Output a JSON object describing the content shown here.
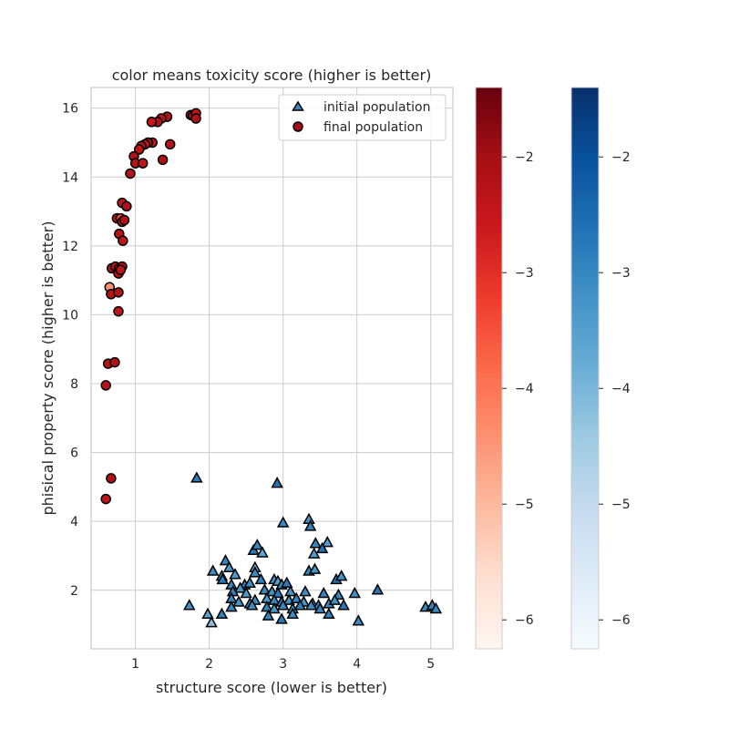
{
  "chart_data": {
    "type": "scatter",
    "title": "color means toxicity score (higher is better)",
    "xlabel": "structure score (lower is better)",
    "ylabel": "phisical property score (higher is better)",
    "xlim": [
      0.4,
      5.3
    ],
    "ylim": [
      0.3,
      16.6
    ],
    "xticks": [
      1,
      2,
      3,
      4,
      5
    ],
    "yticks": [
      2,
      4,
      6,
      8,
      10,
      12,
      14,
      16
    ],
    "grid": true,
    "legend_position": "top-right",
    "series": [
      {
        "name": "initial population",
        "marker": "triangle",
        "colormap": "Blues",
        "points": [
          [
            1.83,
            5.25,
            -2.8
          ],
          [
            2.92,
            5.1,
            -2.7
          ],
          [
            3.0,
            3.95,
            -3.0
          ],
          [
            3.35,
            4.05,
            -3.2
          ],
          [
            3.37,
            3.85,
            -2.9
          ],
          [
            3.6,
            3.38,
            -3.5
          ],
          [
            3.44,
            3.35,
            -3.0
          ],
          [
            3.53,
            3.2,
            -2.6
          ],
          [
            3.42,
            3.05,
            -3.4
          ],
          [
            2.6,
            3.15,
            -2.8
          ],
          [
            2.65,
            3.3,
            -3.0
          ],
          [
            2.72,
            3.08,
            -3.6
          ],
          [
            2.22,
            2.85,
            -2.9
          ],
          [
            2.27,
            2.65,
            -3.3
          ],
          [
            2.05,
            2.55,
            -3.1
          ],
          [
            2.17,
            2.4,
            -3.2
          ],
          [
            2.18,
            2.3,
            -2.8
          ],
          [
            2.35,
            2.45,
            -3.4
          ],
          [
            2.62,
            2.65,
            -3.7
          ],
          [
            2.62,
            2.5,
            -3.1
          ],
          [
            2.7,
            2.3,
            -2.9
          ],
          [
            2.88,
            2.3,
            -3.2
          ],
          [
            2.93,
            2.25,
            -3.5
          ],
          [
            2.98,
            2.15,
            -3.1
          ],
          [
            3.05,
            2.2,
            -2.8
          ],
          [
            3.35,
            2.55,
            -3.0
          ],
          [
            3.43,
            2.6,
            -3.3
          ],
          [
            3.72,
            2.3,
            -2.7
          ],
          [
            3.79,
            2.4,
            -3.2
          ],
          [
            2.3,
            2.15,
            -3.0
          ],
          [
            2.48,
            2.15,
            -2.8
          ],
          [
            2.55,
            2.2,
            -3.1
          ],
          [
            2.42,
            2.05,
            -3.3
          ],
          [
            2.32,
            1.95,
            -2.9
          ],
          [
            2.5,
            1.9,
            -3.4
          ],
          [
            2.75,
            2.0,
            -3.0
          ],
          [
            2.85,
            1.95,
            -3.2
          ],
          [
            2.93,
            1.9,
            -2.8
          ],
          [
            3.1,
            1.95,
            -3.3
          ],
          [
            3.3,
            1.95,
            -3.1
          ],
          [
            3.55,
            1.9,
            -2.9
          ],
          [
            3.75,
            1.85,
            -3.0
          ],
          [
            3.97,
            1.9,
            -3.2
          ],
          [
            4.28,
            2.0,
            -2.7
          ],
          [
            2.3,
            1.75,
            -3.0
          ],
          [
            2.4,
            1.65,
            -3.3
          ],
          [
            2.55,
            1.6,
            -2.9
          ],
          [
            2.62,
            1.7,
            -3.1
          ],
          [
            2.78,
            1.75,
            -3.4
          ],
          [
            2.88,
            1.7,
            -3.0
          ],
          [
            2.98,
            1.65,
            -2.8
          ],
          [
            3.08,
            1.7,
            -3.2
          ],
          [
            3.18,
            1.75,
            -3.0
          ],
          [
            3.28,
            1.65,
            -3.3
          ],
          [
            3.4,
            1.6,
            -2.9
          ],
          [
            3.48,
            1.55,
            -3.1
          ],
          [
            3.62,
            1.6,
            -3.0
          ],
          [
            3.7,
            1.7,
            -3.2
          ],
          [
            3.82,
            1.55,
            -2.8
          ],
          [
            2.3,
            1.5,
            -3.0
          ],
          [
            2.58,
            1.55,
            -3.1
          ],
          [
            2.78,
            1.5,
            -2.9
          ],
          [
            2.88,
            1.45,
            -3.3
          ],
          [
            3.0,
            1.55,
            -3.0
          ],
          [
            3.13,
            1.45,
            -3.2
          ],
          [
            3.23,
            1.55,
            -2.8
          ],
          [
            3.38,
            1.55,
            -3.1
          ],
          [
            3.5,
            1.45,
            -3.0
          ],
          [
            1.73,
            1.55,
            -3.2
          ],
          [
            2.17,
            1.3,
            -2.9
          ],
          [
            1.98,
            1.3,
            -3.6
          ],
          [
            2.03,
            1.05,
            -4.2
          ],
          [
            2.8,
            1.25,
            -3.0
          ],
          [
            2.98,
            1.15,
            -2.8
          ],
          [
            3.13,
            1.3,
            -3.1
          ],
          [
            3.62,
            1.3,
            -2.9
          ],
          [
            4.02,
            1.1,
            -3.0
          ],
          [
            4.93,
            1.5,
            -3.1
          ],
          [
            5.02,
            1.55,
            -2.9
          ],
          [
            5.07,
            1.45,
            -3.0
          ]
        ]
      },
      {
        "name": "final population",
        "marker": "circle",
        "colormap": "Reds",
        "points": [
          [
            1.43,
            15.75,
            -2.2
          ],
          [
            1.35,
            15.7,
            -2.4
          ],
          [
            1.3,
            15.6,
            -2.3
          ],
          [
            1.22,
            15.6,
            -2.5
          ],
          [
            1.75,
            15.8,
            -2.2
          ],
          [
            1.78,
            15.78,
            -2.3
          ],
          [
            1.82,
            15.85,
            -2.4
          ],
          [
            1.82,
            15.7,
            -2.2
          ],
          [
            1.47,
            14.95,
            -2.3
          ],
          [
            1.23,
            15.0,
            -2.4
          ],
          [
            1.17,
            15.0,
            -2.2
          ],
          [
            1.13,
            14.95,
            -2.5
          ],
          [
            1.08,
            14.9,
            -2.3
          ],
          [
            1.05,
            14.8,
            -2.4
          ],
          [
            0.98,
            14.6,
            -2.2
          ],
          [
            1.0,
            14.4,
            -2.3
          ],
          [
            1.1,
            14.4,
            -2.4
          ],
          [
            1.37,
            14.5,
            -2.2
          ],
          [
            0.93,
            14.1,
            -2.3
          ],
          [
            0.82,
            13.25,
            -2.4
          ],
          [
            0.88,
            13.15,
            -2.2
          ],
          [
            0.75,
            12.8,
            -2.3
          ],
          [
            0.8,
            12.8,
            -3.5
          ],
          [
            0.82,
            12.7,
            -2.4
          ],
          [
            0.85,
            12.75,
            -2.2
          ],
          [
            0.78,
            12.35,
            -2.3
          ],
          [
            0.83,
            12.15,
            -2.4
          ],
          [
            0.68,
            11.35,
            -2.2
          ],
          [
            0.73,
            11.4,
            -2.3
          ],
          [
            0.78,
            11.35,
            -2.4
          ],
          [
            0.82,
            11.4,
            -2.2
          ],
          [
            0.77,
            11.2,
            -2.3
          ],
          [
            0.8,
            11.3,
            -2.4
          ],
          [
            0.65,
            10.8,
            -4.4
          ],
          [
            0.67,
            10.6,
            -2.3
          ],
          [
            0.77,
            10.65,
            -2.2
          ],
          [
            0.77,
            10.1,
            -2.4
          ],
          [
            0.63,
            8.58,
            -2.3
          ],
          [
            0.72,
            8.62,
            -2.2
          ],
          [
            0.6,
            7.95,
            -2.3
          ],
          [
            0.67,
            5.25,
            -2.2
          ],
          [
            0.6,
            4.65,
            -2.4
          ]
        ]
      }
    ],
    "colorbars": [
      {
        "colormap": "Reds",
        "ticks": [
          "−2",
          "−3",
          "−4",
          "−5",
          "−6"
        ],
        "tick_values": [
          -2,
          -3,
          -4,
          -5,
          -6
        ],
        "range": [
          -6.25,
          -1.4
        ]
      },
      {
        "colormap": "Blues",
        "ticks": [
          "−2",
          "−3",
          "−4",
          "−5",
          "−6"
        ],
        "tick_values": [
          -2,
          -3,
          -4,
          -5,
          -6
        ],
        "range": [
          -6.25,
          -1.4
        ]
      }
    ]
  }
}
